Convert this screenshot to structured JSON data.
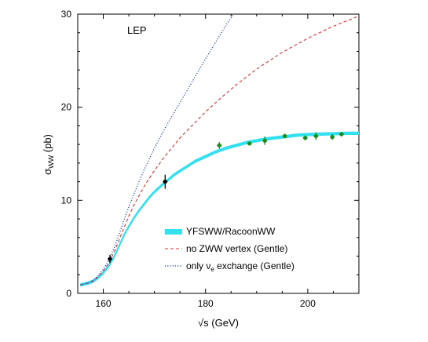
{
  "chart_data": {
    "type": "line",
    "title": "",
    "annotation": "LEP",
    "xlabel": {
      "base": "√s (GeV)"
    },
    "ylabel": {
      "sym": "σ",
      "sub": "WW",
      "rest": " (pb)"
    },
    "xlim": [
      155,
      210
    ],
    "ylim": [
      0,
      30
    ],
    "xticks": [
      160,
      180,
      200
    ],
    "xtick_labels": [
      "160",
      "180",
      "200"
    ],
    "yticks": [
      0,
      10,
      20,
      30
    ],
    "ytick_labels": [
      "0",
      "10",
      "20",
      "30"
    ],
    "grid": false,
    "legend_position": "bottom-right",
    "series": [
      {
        "name": "YFSWW/RacoonWW",
        "style": "band",
        "color": "#33e0f0",
        "x": [
          155.5,
          157,
          158,
          159,
          160,
          161,
          162,
          163,
          164,
          165,
          166,
          167,
          168,
          169,
          170,
          172,
          174,
          176,
          178,
          180,
          182,
          184,
          186,
          188,
          190,
          192,
          195,
          198,
          200,
          202,
          205,
          208,
          210
        ],
        "y": [
          0.9,
          1.1,
          1.3,
          1.7,
          2.2,
          2.9,
          3.8,
          5.0,
          6.2,
          7.2,
          8.1,
          8.9,
          9.6,
          10.3,
          10.9,
          11.9,
          12.8,
          13.5,
          14.2,
          14.7,
          15.2,
          15.6,
          15.9,
          16.2,
          16.4,
          16.6,
          16.8,
          17.0,
          17.05,
          17.1,
          17.15,
          17.2,
          17.2
        ],
        "band_halfwidth": 0.18
      },
      {
        "name": "no ZWW vertex (Gentle)",
        "style": "dashed",
        "color": "#e03030",
        "x": [
          155.5,
          157,
          158,
          159,
          160,
          161,
          162,
          163,
          164,
          165,
          166,
          168,
          170,
          172,
          175,
          178,
          180,
          183,
          186,
          190,
          195,
          200,
          205,
          210
        ],
        "y": [
          0.9,
          1.1,
          1.3,
          1.8,
          2.4,
          3.2,
          4.3,
          5.6,
          7.0,
          8.3,
          9.5,
          11.5,
          13.2,
          14.7,
          16.7,
          18.4,
          19.5,
          21.0,
          22.4,
          24.1,
          25.9,
          27.4,
          28.7,
          29.8
        ]
      },
      {
        "name": "only νe exchange (Gentle)",
        "style": "dotted",
        "color": "#2040c0",
        "x": [
          155.5,
          157,
          158,
          159,
          160,
          161,
          162,
          163,
          164,
          165,
          166,
          168,
          170,
          172,
          175,
          178,
          180,
          182,
          184,
          185.5
        ],
        "y": [
          0.9,
          1.1,
          1.4,
          1.9,
          2.6,
          3.5,
          4.7,
          6.2,
          7.8,
          9.3,
          10.7,
          13.3,
          15.6,
          17.7,
          20.5,
          23.3,
          25.2,
          27.0,
          28.8,
          30.0
        ]
      }
    ],
    "data_points": [
      {
        "x": 161.3,
        "y": 3.7,
        "err": 0.45,
        "color": "#000000"
      },
      {
        "x": 172.1,
        "y": 12.0,
        "err": 0.75,
        "color": "#000000"
      },
      {
        "x": 182.7,
        "y": 15.9,
        "err": 0.35,
        "color": "#1a8c1a"
      },
      {
        "x": 188.6,
        "y": 16.1,
        "err": 0.22,
        "color": "#1a8c1a"
      },
      {
        "x": 191.6,
        "y": 16.4,
        "err": 0.45,
        "color": "#1a8c1a"
      },
      {
        "x": 195.5,
        "y": 16.9,
        "err": 0.25,
        "color": "#1a8c1a"
      },
      {
        "x": 199.5,
        "y": 16.7,
        "err": 0.25,
        "color": "#1a8c1a"
      },
      {
        "x": 201.6,
        "y": 16.9,
        "err": 0.4,
        "color": "#1a8c1a"
      },
      {
        "x": 204.8,
        "y": 16.8,
        "err": 0.3,
        "color": "#1a8c1a"
      },
      {
        "x": 206.6,
        "y": 17.1,
        "err": 0.25,
        "color": "#1a8c1a"
      }
    ],
    "legend": [
      {
        "label": "YFSWW/RacoonWW",
        "style": "band",
        "color": "#33e0f0"
      },
      {
        "label": "no ZWW vertex (Gentle)",
        "style": "dashed",
        "color": "#e03030"
      },
      {
        "label_main": "only ν",
        "label_sub": "e",
        "label_rest": " exchange (Gentle)",
        "style": "dotted",
        "color": "#2040c0"
      }
    ]
  }
}
